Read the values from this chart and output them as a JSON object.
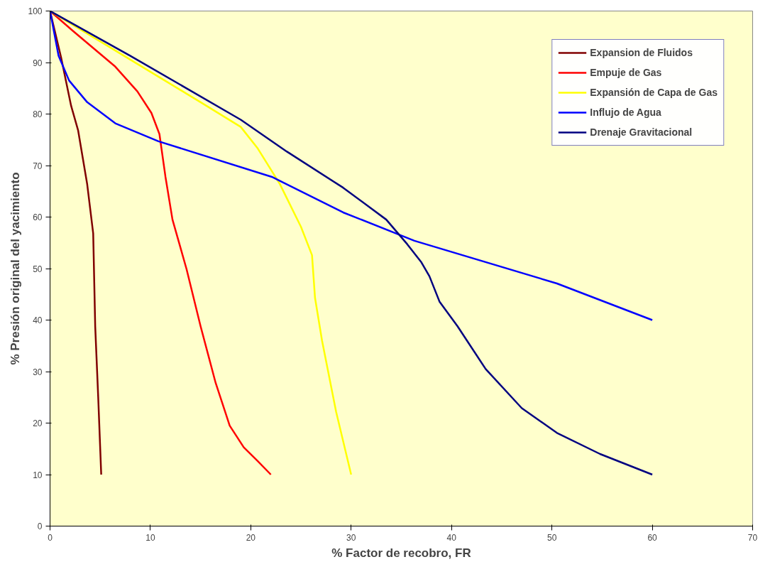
{
  "chart_data": {
    "type": "line",
    "xlabel": "% Factor de recobro, FR",
    "ylabel": "% Presión original del yacimiento",
    "xlim": [
      0,
      70
    ],
    "ylim": [
      0,
      100
    ],
    "xticks": [
      0,
      10,
      20,
      30,
      40,
      50,
      60,
      70
    ],
    "yticks": [
      0,
      10,
      20,
      30,
      40,
      50,
      60,
      70,
      80,
      90,
      100
    ],
    "grid": false,
    "legend": "top right",
    "marker": "none",
    "line_style": "solid",
    "series": [
      {
        "name": "Expansion de Fluidos",
        "color": "#800000",
        "x": [
          0,
          1.1,
          2.1,
          2.8,
          3.7,
          4.3,
          4.5,
          4.8,
          5.1
        ],
        "values": [
          100,
          91,
          81.6,
          76.8,
          66.4,
          56.8,
          38.8,
          25,
          10
        ]
      },
      {
        "name": "Empuje de Gas",
        "color": "#ff0000",
        "x": [
          0,
          2.3,
          6.5,
          8.7,
          10.1,
          10.9,
          11.5,
          12.2,
          13.6,
          15,
          16.5,
          17.9,
          19.3,
          20.7,
          22
        ],
        "values": [
          100,
          96.1,
          89.2,
          84.4,
          80.2,
          76.1,
          67.8,
          59.5,
          49.9,
          38.8,
          27.8,
          19.5,
          15.3,
          12.6,
          10
        ]
      },
      {
        "name": "Expansión de Capa de Gas",
        "color": "#ffff00",
        "x": [
          0,
          15,
          19,
          20.7,
          22.9,
          25,
          26.1,
          26.4,
          27.1,
          28.5,
          30
        ],
        "values": [
          100,
          82.3,
          77.5,
          73.3,
          66.4,
          58.1,
          52.6,
          44.3,
          36,
          22.2,
          10
        ]
      },
      {
        "name": "Influjo de Agua",
        "color": "#0000ff",
        "x": [
          0,
          0.85,
          1.9,
          3.7,
          6.5,
          10.8,
          22.1,
          29.2,
          36.3,
          50.5,
          60
        ],
        "values": [
          100,
          91.3,
          86.5,
          82.3,
          78.2,
          74.7,
          67.8,
          60.9,
          55.4,
          47.1,
          40
        ]
      },
      {
        "name": "Drenaje Gravitacional",
        "color": "#000080",
        "x": [
          0,
          8,
          19,
          23.6,
          29.2,
          33.5,
          35.6,
          37,
          37.8,
          38.8,
          40.6,
          43.4,
          47,
          50.5,
          54.8,
          60
        ],
        "values": [
          100,
          91.3,
          78.9,
          72.7,
          65.7,
          59.5,
          54.7,
          51.2,
          48.5,
          43.6,
          38.8,
          30.5,
          22.9,
          18.1,
          14,
          10
        ]
      }
    ]
  }
}
